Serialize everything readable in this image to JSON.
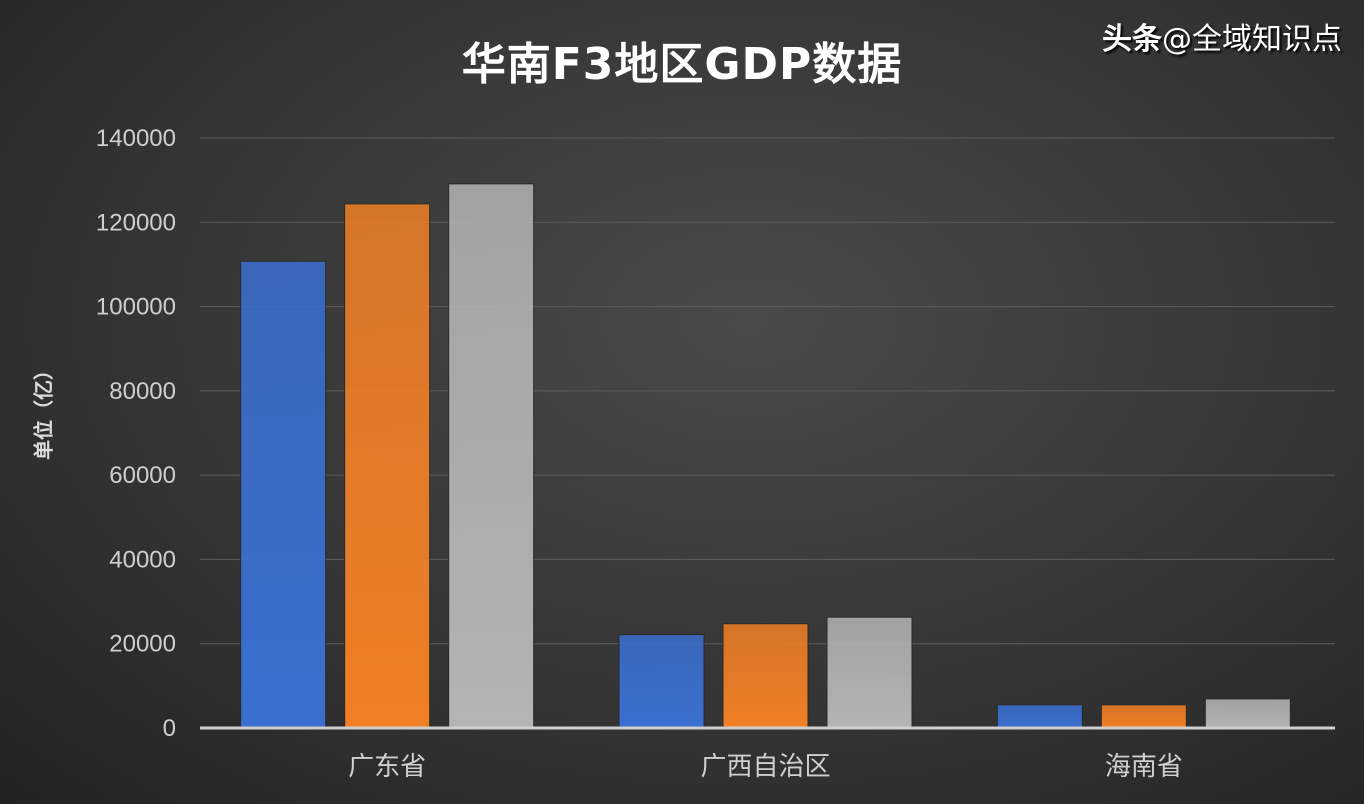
{
  "chart_data": {
    "type": "bar",
    "title": "华南F3地区GDP数据",
    "ylabel": "单位（亿）",
    "xlabel": "",
    "categories": [
      "广东省",
      "广西自治区",
      "海南省"
    ],
    "series": [
      {
        "values": [
          110760,
          124370,
          129120
        ],
        "color": "#3a6fd0"
      },
      {
        "values": [
          22160,
          24740,
          26300
        ],
        "color": "#f07f25"
      },
      {
        "values": [
          5500,
          5500,
          6900
        ],
        "color": "#b4b4b4"
      }
    ],
    "series_by_category_note": "",
    "ylim": [
      0,
      140000
    ],
    "yticks": [
      0,
      20000,
      40000,
      60000,
      80000,
      100000,
      120000,
      140000
    ],
    "grid": true,
    "legend": "none"
  },
  "watermark": {
    "brand": "头条",
    "handle": "@全域知识点"
  }
}
